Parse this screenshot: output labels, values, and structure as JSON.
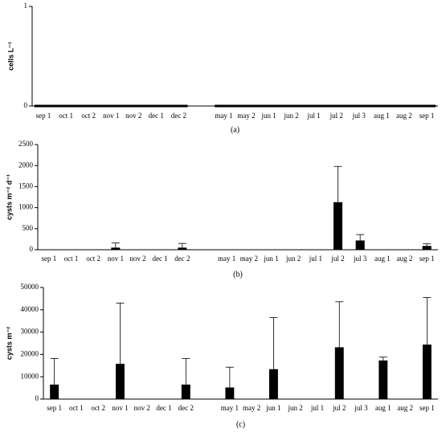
{
  "chart_data": [
    {
      "type": "line",
      "caption": "(a)",
      "ylabel": "cells L⁻¹",
      "categories": [
        "sep 1",
        "oct 1",
        "oct 2",
        "nov 1",
        "nov 2",
        "dec 1",
        "dec 2",
        null,
        "may 1",
        "may 2",
        "jun 1",
        "jun 2",
        "jul 1",
        "jul 2",
        "jul 3",
        "aug 1",
        "aug 2",
        "sep 1"
      ],
      "values": [
        0,
        0,
        0,
        0,
        0,
        0,
        0,
        null,
        0,
        0,
        0,
        0,
        0,
        0,
        0,
        0,
        0,
        0
      ],
      "color": "#000000",
      "ylim": [
        0,
        1
      ],
      "yticks": [
        0,
        1
      ]
    },
    {
      "type": "bar",
      "caption": "(b)",
      "ylabel": "cysts m⁻² d⁻¹",
      "categories": [
        "sep 1",
        "oct 1",
        "oct 2",
        "nov 1",
        "nov 2",
        "dec 1",
        "dec 2",
        null,
        "may 1",
        "may 2",
        "jun 1",
        "jun 2",
        "jul 1",
        "jul 2",
        "jul 3",
        "aug 1",
        "aug 2",
        "sep 1"
      ],
      "values": [
        0,
        0,
        0,
        50,
        0,
        0,
        50,
        null,
        0,
        0,
        0,
        0,
        0,
        1130,
        220,
        0,
        0,
        90
      ],
      "errors": [
        null,
        null,
        null,
        110,
        null,
        null,
        100,
        null,
        null,
        null,
        null,
        null,
        null,
        850,
        140,
        null,
        null,
        50
      ],
      "color": "#000000",
      "ylim": [
        0,
        2500
      ],
      "yticks": [
        0,
        500,
        1000,
        1500,
        2000,
        2500
      ]
    },
    {
      "type": "bar",
      "caption": "(c)",
      "ylabel": "cysts m⁻²",
      "categories": [
        "sep 1",
        "oct 1",
        "oct 2",
        "nov 1",
        "nov 2",
        "dec 1",
        "dec 2",
        null,
        "may 1",
        "may 2",
        "jun 1",
        "jun 2",
        "jul 1",
        "jul 2",
        "jul 3",
        "aug 1",
        "aug 2",
        "sep 1"
      ],
      "values": [
        6500,
        0,
        0,
        15800,
        0,
        0,
        6500,
        null,
        5200,
        0,
        13400,
        0,
        0,
        23200,
        0,
        17300,
        0,
        24400
      ],
      "errors": [
        11700,
        null,
        null,
        27200,
        null,
        null,
        11700,
        null,
        9100,
        null,
        23100,
        null,
        null,
        20400,
        null,
        1500,
        null,
        21100
      ],
      "color": "#000000",
      "ylim": [
        0,
        50000
      ],
      "yticks": [
        0,
        10000,
        20000,
        30000,
        40000,
        50000
      ]
    }
  ]
}
